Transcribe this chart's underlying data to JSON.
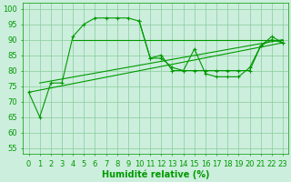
{
  "x": [
    0,
    1,
    2,
    3,
    4,
    5,
    6,
    7,
    8,
    9,
    10,
    11,
    12,
    13,
    14,
    15,
    16,
    17,
    18,
    19,
    20,
    21,
    22,
    23
  ],
  "line1": [
    73,
    65,
    76,
    76,
    91,
    95,
    97,
    97,
    97,
    97,
    96,
    84,
    84,
    81,
    80,
    87,
    79,
    78,
    78,
    78,
    81,
    88,
    91,
    89
  ],
  "line2": [
    null,
    null,
    null,
    null,
    null,
    null,
    null,
    null,
    null,
    null,
    96,
    84,
    85,
    80,
    80,
    80,
    80,
    80,
    80,
    80,
    80,
    88,
    90,
    89
  ],
  "trend1_x": [
    0,
    23
  ],
  "trend1_y": [
    73,
    89
  ],
  "trend2_x": [
    1,
    23
  ],
  "trend2_y": [
    76,
    90
  ],
  "trend3_x": [
    4,
    23
  ],
  "trend3_y": [
    90,
    90
  ],
  "bg_color": "#cceedd",
  "grid_color": "#88cc99",
  "line_color": "#009900",
  "xlabel": "Humidité relative (%)",
  "xlabel_fontsize": 7,
  "ylabel_values": [
    55,
    60,
    65,
    70,
    75,
    80,
    85,
    90,
    95,
    100
  ],
  "ylim": [
    53,
    102
  ],
  "xlim": [
    -0.5,
    23.5
  ],
  "tick_fontsize": 6
}
